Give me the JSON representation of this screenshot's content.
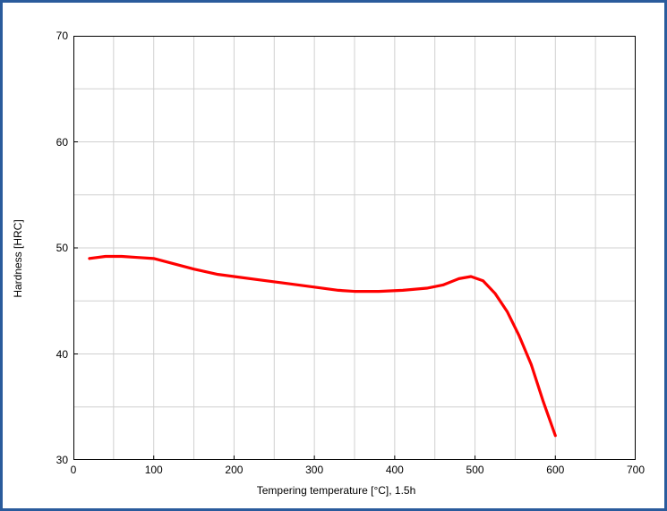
{
  "chart": {
    "type": "line",
    "xlabel": "Tempering temperature [°C], 1.5h",
    "ylabel": "Hardness [HRC]",
    "label_fontsize": 12,
    "label_color": "#000000",
    "tick_fontsize": 12,
    "tick_color": "#000000",
    "xlim": [
      0,
      700
    ],
    "ylim": [
      30,
      70
    ],
    "xticks": [
      0,
      100,
      200,
      300,
      400,
      500,
      600,
      700
    ],
    "yticks": [
      30,
      40,
      50,
      60,
      70
    ],
    "x_minor_step": 50,
    "y_minor_step": 5,
    "background_color": "#ffffff",
    "plot_background_color": "#ffffff",
    "grid_color": "#d0d0d0",
    "axis_color": "#000000",
    "frame_border_color": "#2a5b9c",
    "series": [
      {
        "name": "hardness",
        "color": "#ff0000",
        "line_width": 3.2,
        "x": [
          20,
          40,
          60,
          80,
          100,
          120,
          150,
          180,
          200,
          230,
          260,
          300,
          330,
          350,
          380,
          410,
          440,
          460,
          480,
          495,
          510,
          525,
          540,
          555,
          570,
          585,
          600
        ],
        "y": [
          49.0,
          49.2,
          49.2,
          49.1,
          49.0,
          48.6,
          48.0,
          47.5,
          47.3,
          47.0,
          46.7,
          46.3,
          46.0,
          45.9,
          45.9,
          46.0,
          46.2,
          46.5,
          47.1,
          47.3,
          46.9,
          45.7,
          44.0,
          41.7,
          39.0,
          35.5,
          32.3
        ]
      }
    ]
  }
}
